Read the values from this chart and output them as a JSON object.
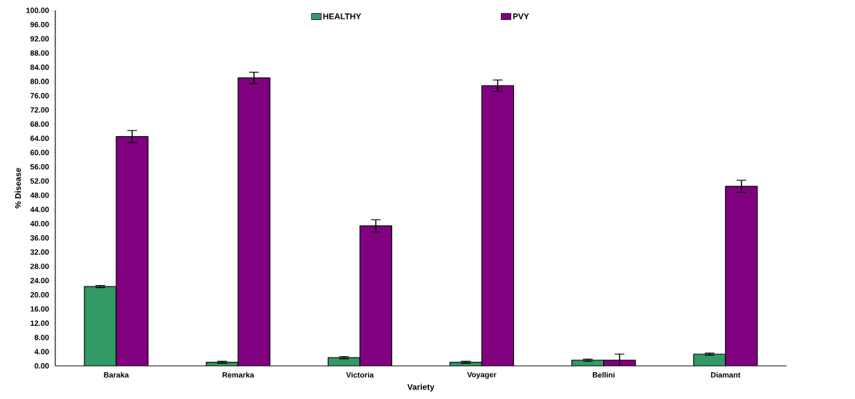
{
  "chart_data": {
    "type": "bar",
    "xlabel": "Variety",
    "ylabel": "% Disease",
    "categories": [
      "Baraka",
      "Remarka",
      "Victoria",
      "Voyager",
      "Bellini",
      "Diamant"
    ],
    "series": [
      {
        "name": "HEALTHY",
        "color": "#339966",
        "values": [
          22.3,
          1.0,
          2.3,
          1.0,
          1.6,
          3.3
        ],
        "errors": [
          0.3,
          0.3,
          0.3,
          0.3,
          0.3,
          0.3
        ]
      },
      {
        "name": "PVY",
        "color": "#800080",
        "values": [
          64.5,
          81.0,
          39.4,
          78.8,
          1.6,
          50.5
        ],
        "errors": [
          1.7,
          1.6,
          1.7,
          1.6,
          1.7,
          1.7
        ]
      }
    ],
    "ylim": [
      0,
      100
    ],
    "yticks": [
      {
        "value": 0,
        "label": "0.00"
      },
      {
        "value": 4,
        "label": "4.00"
      },
      {
        "value": 8,
        "label": "8.00"
      },
      {
        "value": 12,
        "label": "12.00"
      },
      {
        "value": 16,
        "label": "16.00"
      },
      {
        "value": 20,
        "label": "20.00"
      },
      {
        "value": 24,
        "label": "24.00"
      },
      {
        "value": 28,
        "label": "28.00"
      },
      {
        "value": 32,
        "label": "32.00"
      },
      {
        "value": 36,
        "label": "36.00"
      },
      {
        "value": 40,
        "label": "40.00"
      },
      {
        "value": 44,
        "label": "44.00"
      },
      {
        "value": 48,
        "label": "48.00"
      },
      {
        "value": 52,
        "label": "52.00"
      },
      {
        "value": 56,
        "label": "56.00"
      },
      {
        "value": 60,
        "label": "60.00"
      },
      {
        "value": 64,
        "label": "64.00"
      },
      {
        "value": 68,
        "label": "68.00"
      },
      {
        "value": 72,
        "label": "72.00"
      },
      {
        "value": 76,
        "label": "76.00"
      },
      {
        "value": 80,
        "label": "80.00"
      },
      {
        "value": 84,
        "label": "84.00"
      },
      {
        "value": 88,
        "label": "88.00"
      },
      {
        "value": 92,
        "label": "92.00"
      },
      {
        "value": 96,
        "label": "96.00"
      },
      {
        "value": 100,
        "label": "100.00"
      }
    ],
    "legend": "top",
    "grid": false
  }
}
